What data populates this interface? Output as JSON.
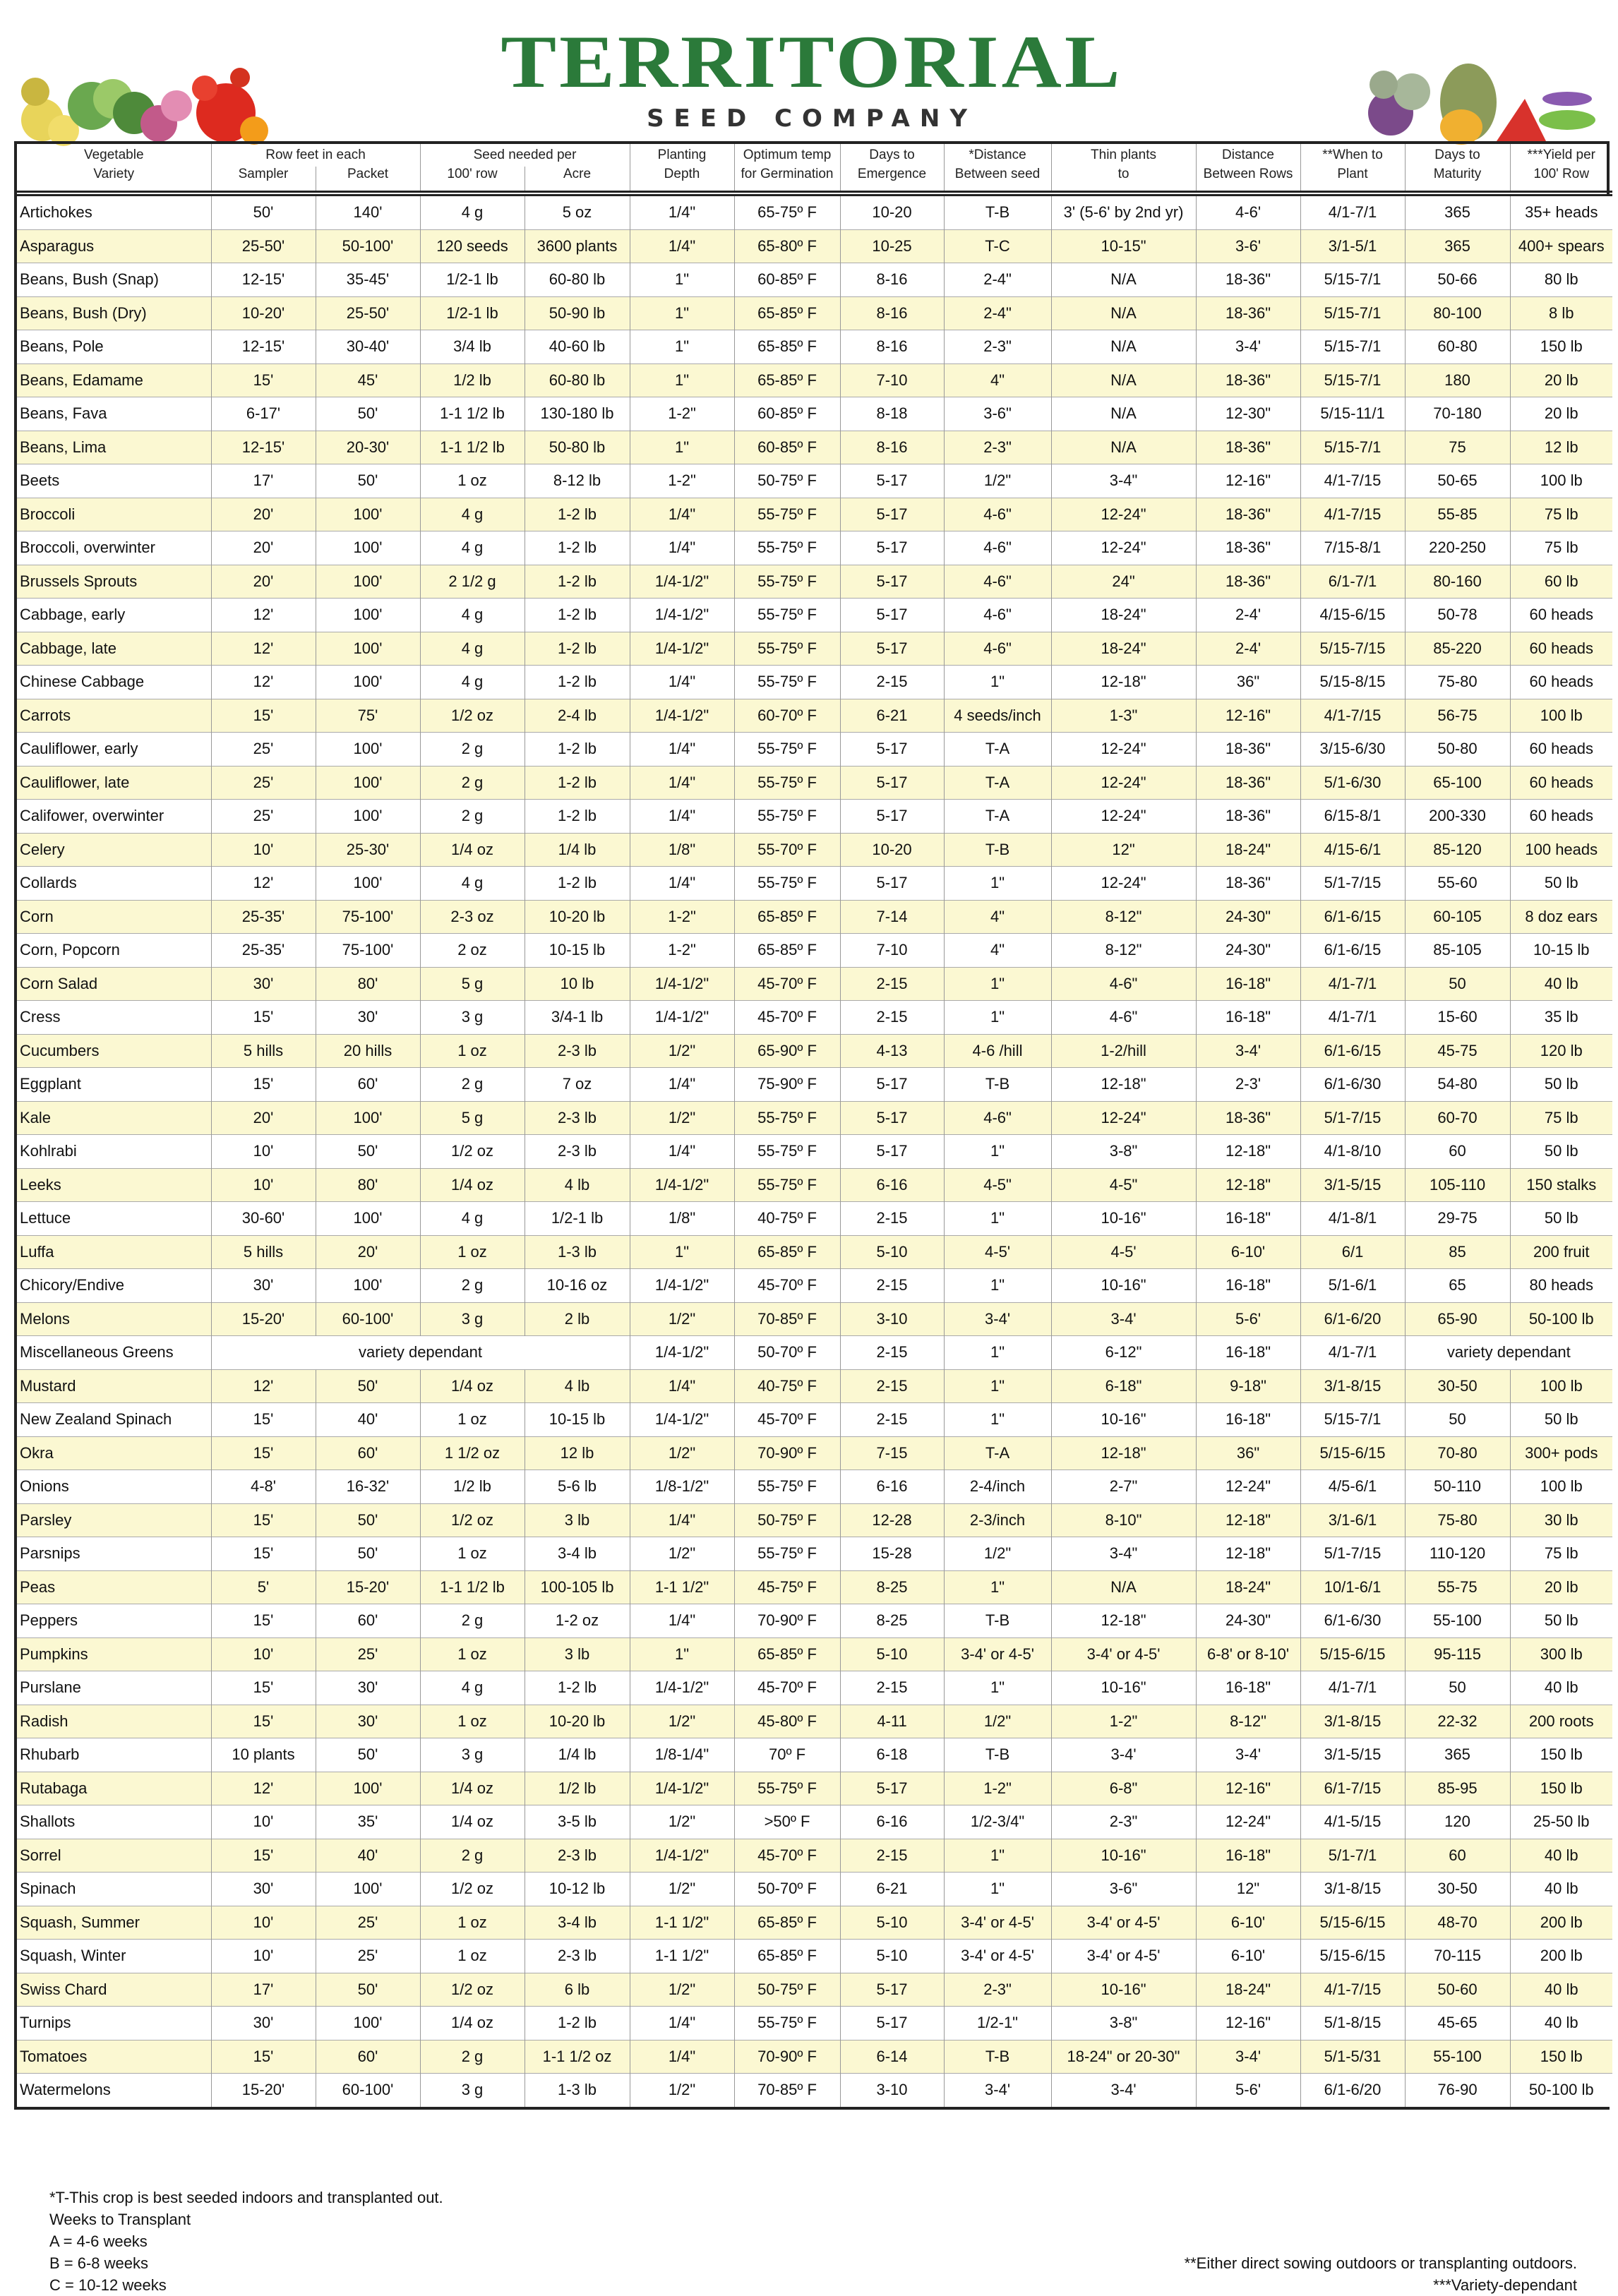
{
  "logo": {
    "word": "TERRITORIAL",
    "sub": "SEED COMPANY"
  },
  "header": {
    "top": [
      "Vegetable",
      "Row feet in each",
      "Seed needed per",
      "Planting",
      "Optimum temp",
      "Days to",
      "*Distance",
      "Thin plants",
      "Distance",
      "**When to",
      "Days to",
      "***Yield per"
    ],
    "bottom": [
      "Variety",
      "Sampler",
      "Packet",
      "100' row",
      "Acre",
      "Depth",
      "for Germination",
      "Emergence",
      "Between seed",
      "to",
      "Between Rows",
      "Plant",
      "Maturity",
      "100' Row"
    ]
  },
  "table": {
    "rows": [
      [
        "Artichokes",
        "50'",
        "140'",
        "4 g",
        "5 oz",
        "1/4\"",
        "65-75º F",
        "10-20",
        "T-B",
        "3' (5-6' by 2nd yr)",
        "4-6'",
        "4/1-7/1",
        "365",
        "35+ heads"
      ],
      [
        "Asparagus",
        "25-50'",
        "50-100'",
        "120 seeds",
        "3600 plants",
        "1/4\"",
        "65-80º F",
        "10-25",
        "T-C",
        "10-15\"",
        "3-6'",
        "3/1-5/1",
        "365",
        "400+ spears"
      ],
      [
        "Beans, Bush (Snap)",
        "12-15'",
        "35-45'",
        "1/2-1 lb",
        "60-80 lb",
        "1\"",
        "60-85º F",
        "8-16",
        "2-4\"",
        "N/A",
        "18-36\"",
        "5/15-7/1",
        "50-66",
        "80 lb"
      ],
      [
        "Beans, Bush (Dry)",
        "10-20'",
        "25-50'",
        "1/2-1 lb",
        "50-90 lb",
        "1\"",
        "65-85º F",
        "8-16",
        "2-4\"",
        "N/A",
        "18-36\"",
        "5/15-7/1",
        "80-100",
        "8 lb"
      ],
      [
        "Beans, Pole",
        "12-15'",
        "30-40'",
        "3/4 lb",
        "40-60 lb",
        "1\"",
        "65-85º F",
        "8-16",
        "2-3\"",
        "N/A",
        "3-4'",
        "5/15-7/1",
        "60-80",
        "150 lb"
      ],
      [
        "Beans, Edamame",
        "15'",
        "45'",
        "1/2 lb",
        "60-80 lb",
        "1\"",
        "65-85º F",
        "7-10",
        "4\"",
        "N/A",
        "18-36\"",
        "5/15-7/1",
        "180",
        "20 lb"
      ],
      [
        "Beans, Fava",
        "6-17'",
        "50'",
        "1-1 1/2 lb",
        "130-180 lb",
        "1-2\"",
        "60-85º F",
        "8-18",
        "3-6\"",
        "N/A",
        "12-30\"",
        "5/15-11/1",
        "70-180",
        "20 lb"
      ],
      [
        "Beans, Lima",
        "12-15'",
        "20-30'",
        "1-1 1/2 lb",
        "50-80 lb",
        "1\"",
        "60-85º F",
        "8-16",
        "2-3\"",
        "N/A",
        "18-36\"",
        "5/15-7/1",
        "75",
        "12 lb"
      ],
      [
        "Beets",
        "17'",
        "50'",
        "1 oz",
        "8-12 lb",
        "1-2\"",
        "50-75º F",
        "5-17",
        "1/2\"",
        "3-4\"",
        "12-16\"",
        "4/1-7/15",
        "50-65",
        "100 lb"
      ],
      [
        "Broccoli",
        "20'",
        "100'",
        "4 g",
        "1-2 lb",
        "1/4\"",
        "55-75º F",
        "5-17",
        "4-6\"",
        "12-24\"",
        "18-36\"",
        "4/1-7/15",
        "55-85",
        "75 lb"
      ],
      [
        "Broccoli, overwinter",
        "20'",
        "100'",
        "4 g",
        "1-2 lb",
        "1/4\"",
        "55-75º F",
        "5-17",
        "4-6\"",
        "12-24\"",
        "18-36\"",
        "7/15-8/1",
        "220-250",
        "75 lb"
      ],
      [
        "Brussels Sprouts",
        "20'",
        "100'",
        "2 1/2 g",
        "1-2 lb",
        "1/4-1/2\"",
        "55-75º F",
        "5-17",
        "4-6\"",
        "24\"",
        "18-36\"",
        "6/1-7/1",
        "80-160",
        "60 lb"
      ],
      [
        "Cabbage, early",
        "12'",
        "100'",
        "4 g",
        "1-2 lb",
        "1/4-1/2\"",
        "55-75º F",
        "5-17",
        "4-6\"",
        "18-24\"",
        "2-4'",
        "4/15-6/15",
        "50-78",
        "60 heads"
      ],
      [
        "Cabbage, late",
        "12'",
        "100'",
        "4 g",
        "1-2 lb",
        "1/4-1/2\"",
        "55-75º F",
        "5-17",
        "4-6\"",
        "18-24\"",
        "2-4'",
        "5/15-7/15",
        "85-220",
        "60 heads"
      ],
      [
        "Chinese Cabbage",
        "12'",
        "100'",
        "4 g",
        "1-2 lb",
        "1/4\"",
        "55-75º F",
        "2-15",
        "1\"",
        "12-18\"",
        "36\"",
        "5/15-8/15",
        "75-80",
        "60 heads"
      ],
      [
        "Carrots",
        "15'",
        "75'",
        "1/2 oz",
        "2-4 lb",
        "1/4-1/2\"",
        "60-70º F",
        "6-21",
        "4 seeds/inch",
        "1-3\"",
        "12-16\"",
        "4/1-7/15",
        "56-75",
        "100 lb"
      ],
      [
        "Cauliflower, early",
        "25'",
        "100'",
        "2 g",
        "1-2 lb",
        "1/4\"",
        "55-75º F",
        "5-17",
        "T-A",
        "12-24\"",
        "18-36\"",
        "3/15-6/30",
        "50-80",
        "60 heads"
      ],
      [
        "Cauliflower, late",
        "25'",
        "100'",
        "2 g",
        "1-2 lb",
        "1/4\"",
        "55-75º F",
        "5-17",
        "T-A",
        "12-24\"",
        "18-36\"",
        "5/1-6/30",
        "65-100",
        "60 heads"
      ],
      [
        "Califower, overwinter",
        "25'",
        "100'",
        "2 g",
        "1-2 lb",
        "1/4\"",
        "55-75º F",
        "5-17",
        "T-A",
        "12-24\"",
        "18-36\"",
        "6/15-8/1",
        "200-330",
        "60 heads"
      ],
      [
        "Celery",
        "10'",
        "25-30'",
        "1/4 oz",
        "1/4 lb",
        "1/8\"",
        "55-70º F",
        "10-20",
        "T-B",
        "12\"",
        "18-24\"",
        "4/15-6/1",
        "85-120",
        "100 heads"
      ],
      [
        "Collards",
        "12'",
        "100'",
        "4 g",
        "1-2 lb",
        "1/4\"",
        "55-75º F",
        "5-17",
        "1\"",
        "12-24\"",
        "18-36\"",
        "5/1-7/15",
        "55-60",
        "50 lb"
      ],
      [
        "Corn",
        "25-35'",
        "75-100'",
        "2-3 oz",
        "10-20 lb",
        "1-2\"",
        "65-85º F",
        "7-14",
        "4\"",
        "8-12\"",
        "24-30\"",
        "6/1-6/15",
        "60-105",
        "8 doz ears"
      ],
      [
        "Corn, Popcorn",
        "25-35'",
        "75-100'",
        "2 oz",
        "10-15 lb",
        "1-2\"",
        "65-85º F",
        "7-10",
        "4\"",
        "8-12\"",
        "24-30\"",
        "6/1-6/15",
        "85-105",
        "10-15 lb"
      ],
      [
        "Corn Salad",
        "30'",
        "80'",
        "5 g",
        "10 lb",
        "1/4-1/2\"",
        "45-70º F",
        "2-15",
        "1\"",
        "4-6\"",
        "16-18\"",
        "4/1-7/1",
        "50",
        "40 lb"
      ],
      [
        "Cress",
        "15'",
        "30'",
        "3 g",
        "3/4-1 lb",
        "1/4-1/2\"",
        "45-70º F",
        "2-15",
        "1\"",
        "4-6\"",
        "16-18\"",
        "4/1-7/1",
        "15-60",
        "35 lb"
      ],
      [
        "Cucumbers",
        "5 hills",
        "20 hills",
        "1 oz",
        "2-3 lb",
        "1/2\"",
        "65-90º F",
        "4-13",
        "4-6 /hill",
        "1-2/hill",
        "3-4'",
        "6/1-6/15",
        "45-75",
        "120 lb"
      ],
      [
        "Eggplant",
        "15'",
        "60'",
        "2 g",
        "7 oz",
        "1/4\"",
        "75-90º F",
        "5-17",
        "T-B",
        "12-18\"",
        "2-3'",
        "6/1-6/30",
        "54-80",
        "50 lb"
      ],
      [
        "Kale",
        "20'",
        "100'",
        "5 g",
        "2-3 lb",
        "1/2\"",
        "55-75º F",
        "5-17",
        "4-6\"",
        "12-24\"",
        "18-36\"",
        "5/1-7/15",
        "60-70",
        "75 lb"
      ],
      [
        "Kohlrabi",
        "10'",
        "50'",
        "1/2 oz",
        "2-3 lb",
        "1/4\"",
        "55-75º F",
        "5-17",
        "1\"",
        "3-8\"",
        "12-18\"",
        "4/1-8/10",
        "60",
        "50 lb"
      ],
      [
        "Leeks",
        "10'",
        "80'",
        "1/4 oz",
        "4 lb",
        "1/4-1/2\"",
        "55-75º F",
        "6-16",
        "4-5\"",
        "4-5\"",
        "12-18\"",
        "3/1-5/15",
        "105-110",
        "150 stalks"
      ],
      [
        "Lettuce",
        "30-60'",
        "100'",
        "4 g",
        "1/2-1 lb",
        "1/8\"",
        "40-75º F",
        "2-15",
        "1\"",
        "10-16\"",
        "16-18\"",
        "4/1-8/1",
        "29-75",
        "50 lb"
      ],
      [
        "Luffa",
        "5 hills",
        "20'",
        "1 oz",
        "1-3 lb",
        "1\"",
        "65-85º F",
        "5-10",
        "4-5'",
        "4-5'",
        "6-10'",
        "6/1",
        "85",
        "200 fruit"
      ],
      [
        "Chicory/Endive",
        "30'",
        "100'",
        "2 g",
        "10-16 oz",
        "1/4-1/2\"",
        "45-70º F",
        "2-15",
        "1\"",
        "10-16\"",
        "16-18\"",
        "5/1-6/1",
        "65",
        "80 heads"
      ],
      [
        "Melons",
        "15-20'",
        "60-100'",
        "3 g",
        "2 lb",
        "1/2\"",
        "70-85º F",
        "3-10",
        "3-4'",
        "3-4'",
        "5-6'",
        "6/1-6/20",
        "65-90",
        "50-100 lb"
      ],
      [
        "Miscellaneous Greens",
        "variety dependant",
        null,
        null,
        null,
        "1/4-1/2\"",
        "50-70º F",
        "2-15",
        "1\"",
        "6-12\"",
        "16-18\"",
        "4/1-7/1",
        "variety dependant",
        null
      ],
      [
        "Mustard",
        "12'",
        "50'",
        "1/4 oz",
        "4 lb",
        "1/4\"",
        "40-75º F",
        "2-15",
        "1\"",
        "6-18\"",
        "9-18\"",
        "3/1-8/15",
        "30-50",
        "100 lb"
      ],
      [
        "New Zealand Spinach",
        "15'",
        "40'",
        "1 oz",
        "10-15 lb",
        "1/4-1/2\"",
        "45-70º F",
        "2-15",
        "1\"",
        "10-16\"",
        "16-18\"",
        "5/15-7/1",
        "50",
        "50 lb"
      ],
      [
        "Okra",
        "15'",
        "60'",
        "1 1/2 oz",
        "12 lb",
        "1/2\"",
        "70-90º F",
        "7-15",
        "T-A",
        "12-18\"",
        "36\"",
        "5/15-6/15",
        "70-80",
        "300+ pods"
      ],
      [
        "Onions",
        "4-8'",
        "16-32'",
        "1/2 lb",
        "5-6 lb",
        "1/8-1/2\"",
        "55-75º F",
        "6-16",
        "2-4/inch",
        "2-7\"",
        "12-24\"",
        "4/5-6/1",
        "50-110",
        "100 lb"
      ],
      [
        "Parsley",
        "15'",
        "50'",
        "1/2 oz",
        "3 lb",
        "1/4\"",
        "50-75º F",
        "12-28",
        "2-3/inch",
        "8-10\"",
        "12-18\"",
        "3/1-6/1",
        "75-80",
        "30 lb"
      ],
      [
        "Parsnips",
        "15'",
        "50'",
        "1 oz",
        "3-4 lb",
        "1/2\"",
        "55-75º F",
        "15-28",
        "1/2\"",
        "3-4\"",
        "12-18\"",
        "5/1-7/15",
        "110-120",
        "75 lb"
      ],
      [
        "Peas",
        "5'",
        "15-20'",
        "1-1 1/2 lb",
        "100-105 lb",
        "1-1 1/2\"",
        "45-75º F",
        "8-25",
        "1\"",
        "N/A",
        "18-24\"",
        "10/1-6/1",
        "55-75",
        "20 lb"
      ],
      [
        "Peppers",
        "15'",
        "60'",
        "2 g",
        "1-2 oz",
        "1/4\"",
        "70-90º F",
        "8-25",
        "T-B",
        "12-18\"",
        "24-30\"",
        "6/1-6/30",
        "55-100",
        "50 lb"
      ],
      [
        "Pumpkins",
        "10'",
        "25'",
        "1 oz",
        "3 lb",
        "1\"",
        "65-85º F",
        "5-10",
        "3-4' or 4-5'",
        "3-4' or 4-5'",
        "6-8' or 8-10'",
        "5/15-6/15",
        "95-115",
        "300 lb"
      ],
      [
        "Purslane",
        "15'",
        "30'",
        "4 g",
        "1-2 lb",
        "1/4-1/2\"",
        "45-70º F",
        "2-15",
        "1\"",
        "10-16\"",
        "16-18\"",
        "4/1-7/1",
        "50",
        "40 lb"
      ],
      [
        "Radish",
        "15'",
        "30'",
        "1 oz",
        "10-20 lb",
        "1/2\"",
        "45-80º F",
        "4-11",
        "1/2\"",
        "1-2\"",
        "8-12\"",
        "3/1-8/15",
        "22-32",
        "200 roots"
      ],
      [
        "Rhubarb",
        "10 plants",
        "50'",
        "3 g",
        "1/4 lb",
        "1/8-1/4\"",
        "70º F",
        "6-18",
        "T-B",
        "3-4'",
        "3-4'",
        "3/1-5/15",
        "365",
        "150 lb"
      ],
      [
        "Rutabaga",
        "12'",
        "100'",
        "1/4 oz",
        "1/2 lb",
        "1/4-1/2\"",
        "55-75º F",
        "5-17",
        "1-2\"",
        "6-8\"",
        "12-16\"",
        "6/1-7/15",
        "85-95",
        "150 lb"
      ],
      [
        "Shallots",
        "10'",
        "35'",
        "1/4 oz",
        "3-5 lb",
        "1/2\"",
        ">50º F",
        "6-16",
        "1/2-3/4\"",
        "2-3\"",
        "12-24\"",
        "4/1-5/15",
        "120",
        "25-50 lb"
      ],
      [
        "Sorrel",
        "15'",
        "40'",
        "2 g",
        "2-3 lb",
        "1/4-1/2\"",
        "45-70º F",
        "2-15",
        "1\"",
        "10-16\"",
        "16-18\"",
        "5/1-7/1",
        "60",
        "40 lb"
      ],
      [
        "Spinach",
        "30'",
        "100'",
        "1/2 oz",
        "10-12 lb",
        "1/2\"",
        "50-70º F",
        "6-21",
        "1\"",
        "3-6\"",
        "12\"",
        "3/1-8/15",
        "30-50",
        "40 lb"
      ],
      [
        "Squash, Summer",
        "10'",
        "25'",
        "1 oz",
        "3-4 lb",
        "1-1 1/2\"",
        "65-85º F",
        "5-10",
        "3-4' or 4-5'",
        "3-4' or 4-5'",
        "6-10'",
        "5/15-6/15",
        "48-70",
        "200 lb"
      ],
      [
        "Squash, Winter",
        "10'",
        "25'",
        "1 oz",
        "2-3 lb",
        "1-1 1/2\"",
        "65-85º F",
        "5-10",
        "3-4' or 4-5'",
        "3-4' or 4-5'",
        "6-10'",
        "5/15-6/15",
        "70-115",
        "200 lb"
      ],
      [
        "Swiss Chard",
        "17'",
        "50'",
        "1/2 oz",
        "6 lb",
        "1/2\"",
        "50-75º F",
        "5-17",
        "2-3\"",
        "10-16\"",
        "18-24\"",
        "4/1-7/15",
        "50-60",
        "40 lb"
      ],
      [
        "Turnips",
        "30'",
        "100'",
        "1/4 oz",
        "1-2 lb",
        "1/4\"",
        "55-75º F",
        "5-17",
        "1/2-1\"",
        "3-8\"",
        "12-16\"",
        "5/1-8/15",
        "45-65",
        "40 lb"
      ],
      [
        "Tomatoes",
        "15'",
        "60'",
        "2 g",
        "1-1 1/2 oz",
        "1/4\"",
        "70-90º F",
        "6-14",
        "T-B",
        "18-24\" or 20-30\"",
        "3-4'",
        "5/1-5/31",
        "55-100",
        "150 lb"
      ],
      [
        "Watermelons",
        "15-20'",
        "60-100'",
        "3 g",
        "1-3 lb",
        "1/2\"",
        "70-85º F",
        "3-10",
        "3-4'",
        "3-4'",
        "5-6'",
        "6/1-6/20",
        "76-90",
        "50-100 lb"
      ]
    ]
  },
  "notes": {
    "left": [
      "*T-This crop is best seeded indoors and transplanted out.",
      "Weeks to Transplant",
      "A = 4-6 weeks",
      "B = 6-8 weeks",
      "C = 10-12 weeks"
    ],
    "right": [
      "**Either direct sowing outdoors or transplanting outdoors.",
      "***Variety-dependant"
    ]
  },
  "colors": {
    "brand_green": "#2b7a3a",
    "row_highlight": "#fbf8d2",
    "border": "#222222"
  }
}
